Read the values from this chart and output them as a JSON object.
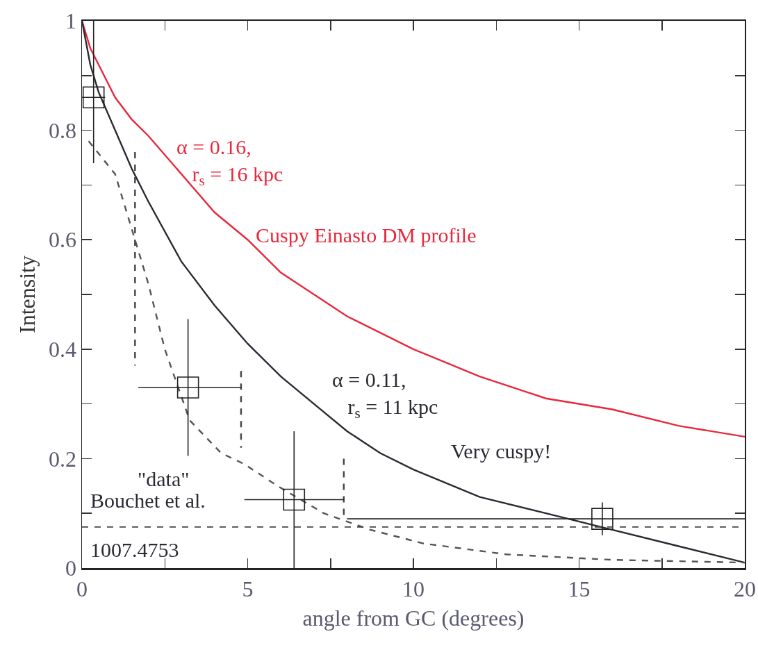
{
  "chart_data": {
    "type": "line",
    "xlabel": "angle from GC (degrees)",
    "ylabel": "Intensity",
    "xlim": [
      0,
      20
    ],
    "xticks": [
      0,
      {
        "value": 2.5,
        "label": null
      },
      5,
      {
        "value": 7.5,
        "label": null
      },
      10,
      {
        "value": 12.5,
        "label": null
      },
      15,
      {
        "value": 17.5,
        "label": null
      },
      20
    ],
    "ylim": [
      0,
      1
    ],
    "yticks": [
      0,
      {
        "value": 0.1,
        "label": null
      },
      0.2,
      {
        "value": 0.3,
        "label": null
      },
      0.4,
      {
        "value": 0.5,
        "label": null
      },
      0.6,
      {
        "value": 0.7,
        "label": null
      },
      0.8,
      {
        "value": 0.9,
        "label": null
      },
      1
    ],
    "grid": false,
    "series": [
      {
        "name": "α = 0.16, r$_{s}$ = 16 kpc",
        "color": "#e8283c",
        "x": [
          0,
          0.25,
          0.5,
          1,
          1.5,
          2,
          3,
          4,
          5,
          6,
          7,
          8,
          9,
          10,
          12,
          14,
          16,
          18,
          20
        ],
        "values": [
          1,
          0.95,
          0.92,
          0.86,
          0.82,
          0.79,
          0.72,
          0.65,
          0.6,
          0.54,
          0.5,
          0.46,
          0.43,
          0.4,
          0.35,
          0.31,
          0.29,
          0.26,
          0.24
        ]
      },
      {
        "name": "α = 0.11, r$_{s}$ = 11 kpc",
        "color": "#2a2a33",
        "x": [
          0,
          0.25,
          0.5,
          1,
          1.5,
          2,
          3,
          4,
          5,
          6,
          7,
          8,
          9,
          10,
          12,
          14,
          16,
          18,
          20
        ],
        "values": [
          1,
          0.92,
          0.87,
          0.8,
          0.73,
          0.67,
          0.56,
          0.48,
          0.41,
          0.35,
          0.3,
          0.25,
          0.21,
          0.18,
          0.13,
          0.1,
          0.07,
          0.04,
          0.01
        ]
      },
      {
        "color": "#555555",
        "line_style": "dashed",
        "x": [
          0.2,
          1,
          2,
          2.5,
          3.25,
          4.2,
          4.9,
          5.9,
          7.3,
          8.7,
          10.3,
          12.8,
          16,
          20
        ],
        "values": [
          0.78,
          0.72,
          0.52,
          0.4,
          0.27,
          0.21,
          0.19,
          0.15,
          0.1,
          0.07,
          0.045,
          0.025,
          0.015,
          0.01
        ]
      },
      {
        "color": "#444444",
        "line_style": "dashed",
        "x": [
          1.6,
          1.6
        ],
        "values": [
          0.76,
          0.37
        ]
      },
      {
        "color": "#444444",
        "line_style": "dashed",
        "x": [
          4.8,
          4.8
        ],
        "values": [
          0.36,
          0.22
        ]
      },
      {
        "color": "#444444",
        "line_style": "dashed",
        "x": [
          7.9,
          7.9
        ],
        "values": [
          0.2,
          0.09
        ]
      },
      {
        "type": "scatter",
        "color": "#222222",
        "marker": "square",
        "x": [
          0.35,
          3.2,
          6.4,
          15.7
        ],
        "values": [
          0.86,
          0.33,
          0.125,
          0.09
        ],
        "errors": [
          [
            0.74,
            1.0
          ],
          [
            0.205,
            0.455
          ],
          [
            0,
            0.25
          ],
          [
            0.06,
            0.12
          ]
        ],
        "xerrors": [
          [
            0,
            0.7
          ],
          [
            1.7,
            4.8
          ],
          [
            4.9,
            7.9
          ],
          [
            8,
            20
          ]
        ]
      }
    ],
    "ref_lines": [
      {
        "axis": "y",
        "value": 0.075,
        "color": "#444444",
        "line_style": "dashed"
      }
    ],
    "annotations": [
      "Cuspy Einasto DM profile",
      "Very cuspy!",
      "\"data\"",
      "Bouchet et al.",
      "1007.4753"
    ]
  }
}
